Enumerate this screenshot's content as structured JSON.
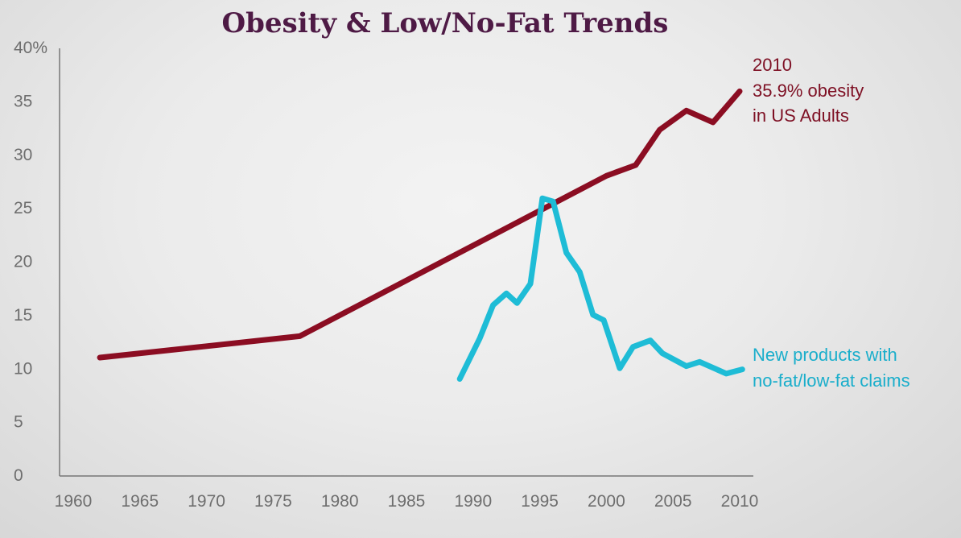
{
  "chart_data": {
    "type": "line",
    "title": "Obesity & Low/No-Fat Trends",
    "xlabel": "",
    "ylabel": "",
    "xlim": [
      1960,
      2010
    ],
    "ylim": [
      0,
      40
    ],
    "x_ticks": [
      "1960",
      "1965",
      "1970",
      "1975",
      "1980",
      "1985",
      "1990",
      "1995",
      "2000",
      "2005",
      "2010"
    ],
    "y_ticks": [
      "0",
      "5",
      "10",
      "15",
      "20",
      "25",
      "30",
      "35",
      "40%"
    ],
    "grid": false,
    "series": [
      {
        "color": "#8b0d22",
        "x": [
          1962,
          1977,
          2000,
          2002.2,
          2004,
          2006,
          2008,
          2010
        ],
        "y": [
          11.0,
          13.0,
          28.0,
          29.0,
          32.3,
          34.1,
          33.0,
          35.9
        ]
      },
      {
        "color": "#1ebcd6",
        "x": [
          1989,
          1990.5,
          1991.5,
          1992.5,
          1993.3,
          1994.3,
          1995.2,
          1996,
          1997,
          1998,
          1999,
          1999.8,
          2001,
          2002,
          2003.3,
          2004.2,
          2006,
          2007,
          2009,
          2010.2
        ],
        "y": [
          9.0,
          12.8,
          15.9,
          17.0,
          16.1,
          17.9,
          25.9,
          25.6,
          20.8,
          19.0,
          15.0,
          14.5,
          10.0,
          12.0,
          12.6,
          11.4,
          10.2,
          10.6,
          9.5,
          9.9
        ]
      }
    ],
    "annotations": {
      "obesity": [
        "2010",
        "35.9% obesity",
        "in US Adults"
      ],
      "products": [
        "New products with",
        "no-fat/low-fat claims"
      ]
    }
  }
}
